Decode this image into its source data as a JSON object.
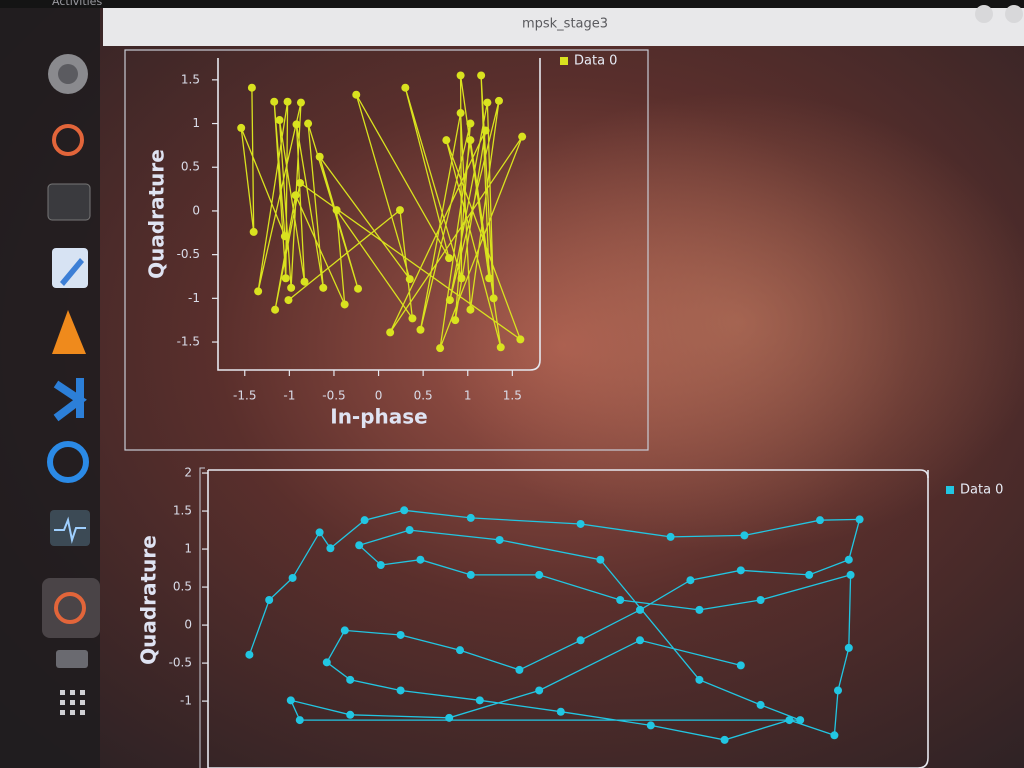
{
  "topbar": {
    "activities": "Activities"
  },
  "window": {
    "title": "mpsk_stage3"
  },
  "chart_data": [
    {
      "type": "line",
      "x_label": "In-phase",
      "y_label": "Quadrature",
      "xlim": [
        -1.8,
        1.81
      ],
      "ylim": [
        -1.82,
        1.75
      ],
      "xticks": [
        -1.5,
        -1,
        -0.5,
        0,
        0.5,
        1,
        1.5
      ],
      "yticks": [
        -1.5,
        -1,
        -0.5,
        0,
        0.5,
        1,
        1.5
      ],
      "legend": "top-right-outside",
      "series": [
        {
          "name": "Data 0",
          "color": "#d9e21f",
          "x": [
            -1.42,
            -1.4,
            -1.54,
            -1.05,
            -1.17,
            -1.04,
            -1.02,
            -1.35,
            -0.87,
            -0.98,
            -1.11,
            -0.83,
            -0.92,
            -0.62,
            -0.79,
            -0.23,
            -0.66,
            0.35,
            -0.25,
            0.79,
            0.3,
            0.93,
            0.92,
            1.24,
            1.15,
            1.29,
            1.22,
            0.8,
            1.35,
            1.03,
            0.92,
            0.47,
            1.03,
            0.86,
            1.2,
            0.13,
            1.61,
            0.69,
            1.03,
            1.37,
            0.76,
            1.59,
            -0.88,
            -1.16,
            -0.93,
            -0.38,
            -0.47,
            0.38,
            0.24,
            -1.01
          ],
          "values": [
            1.41,
            -0.24,
            0.95,
            -0.29,
            1.25,
            -0.77,
            1.25,
            -0.92,
            1.24,
            -0.88,
            1.04,
            -0.81,
            0.99,
            -0.88,
            1.0,
            -0.89,
            0.62,
            -0.78,
            1.33,
            -0.54,
            1.41,
            -0.77,
            1.55,
            -0.77,
            1.55,
            -1.0,
            1.24,
            -1.02,
            1.26,
            -1.13,
            1.12,
            -1.36,
            1.0,
            -1.25,
            0.92,
            -1.39,
            0.85,
            -1.57,
            0.81,
            -1.56,
            0.81,
            -1.47,
            0.32,
            -1.13,
            0.18,
            -1.07,
            0.01,
            -1.23,
            0.01,
            -1.02
          ]
        }
      ]
    },
    {
      "type": "line",
      "y_label": "Quadrature",
      "xlim": [
        -2,
        2
      ],
      "ylim": [
        -1.88,
        2.04
      ],
      "yticks": [
        -1,
        -0.5,
        0,
        0.5,
        1,
        1.5,
        2
      ],
      "legend": "top-right-outside",
      "series": [
        {
          "name": "Data 0",
          "color": "#22c6e2",
          "x": [
            -1.77,
            -1.66,
            -1.53,
            -1.38,
            -1.32,
            -1.13,
            -0.91,
            -0.54,
            0.07,
            0.57,
            0.98,
            1.4,
            1.62,
            1.56,
            1.34,
            0.96,
            0.68,
            0.4,
            0.07,
            -0.27,
            -0.6,
            -0.93,
            -1.24,
            -1.34,
            -1.21,
            -0.93,
            -0.49,
            -0.04,
            0.46,
            0.87,
            1.23,
            1.48,
            1.5,
            1.56,
            1.57,
            1.07,
            0.73,
            0.29,
            -0.16,
            -0.54,
            -0.82,
            -1.04,
            -1.16,
            -0.88,
            -0.38,
            0.18,
            0.73,
            1.07,
            1.29,
            -1.49,
            -1.54,
            -1.21,
            -0.66,
            -0.16,
            0.4,
            0.96
          ],
          "values": [
            -0.39,
            0.33,
            0.62,
            1.22,
            1.01,
            1.38,
            1.51,
            1.41,
            1.33,
            1.16,
            1.18,
            1.38,
            1.39,
            0.86,
            0.66,
            0.72,
            0.59,
            0.2,
            -0.2,
            -0.59,
            -0.33,
            -0.13,
            -0.07,
            -0.49,
            -0.72,
            -0.86,
            -0.99,
            -1.14,
            -1.32,
            -1.51,
            -1.25,
            -1.45,
            -0.86,
            -0.3,
            0.66,
            0.33,
            0.2,
            0.33,
            0.66,
            0.66,
            0.86,
            0.79,
            1.05,
            1.25,
            1.12,
            0.86,
            -0.72,
            -1.05,
            -1.25,
            -1.25,
            -0.99,
            -1.18,
            -1.22,
            -0.86,
            -0.2,
            -0.53
          ]
        }
      ]
    }
  ]
}
